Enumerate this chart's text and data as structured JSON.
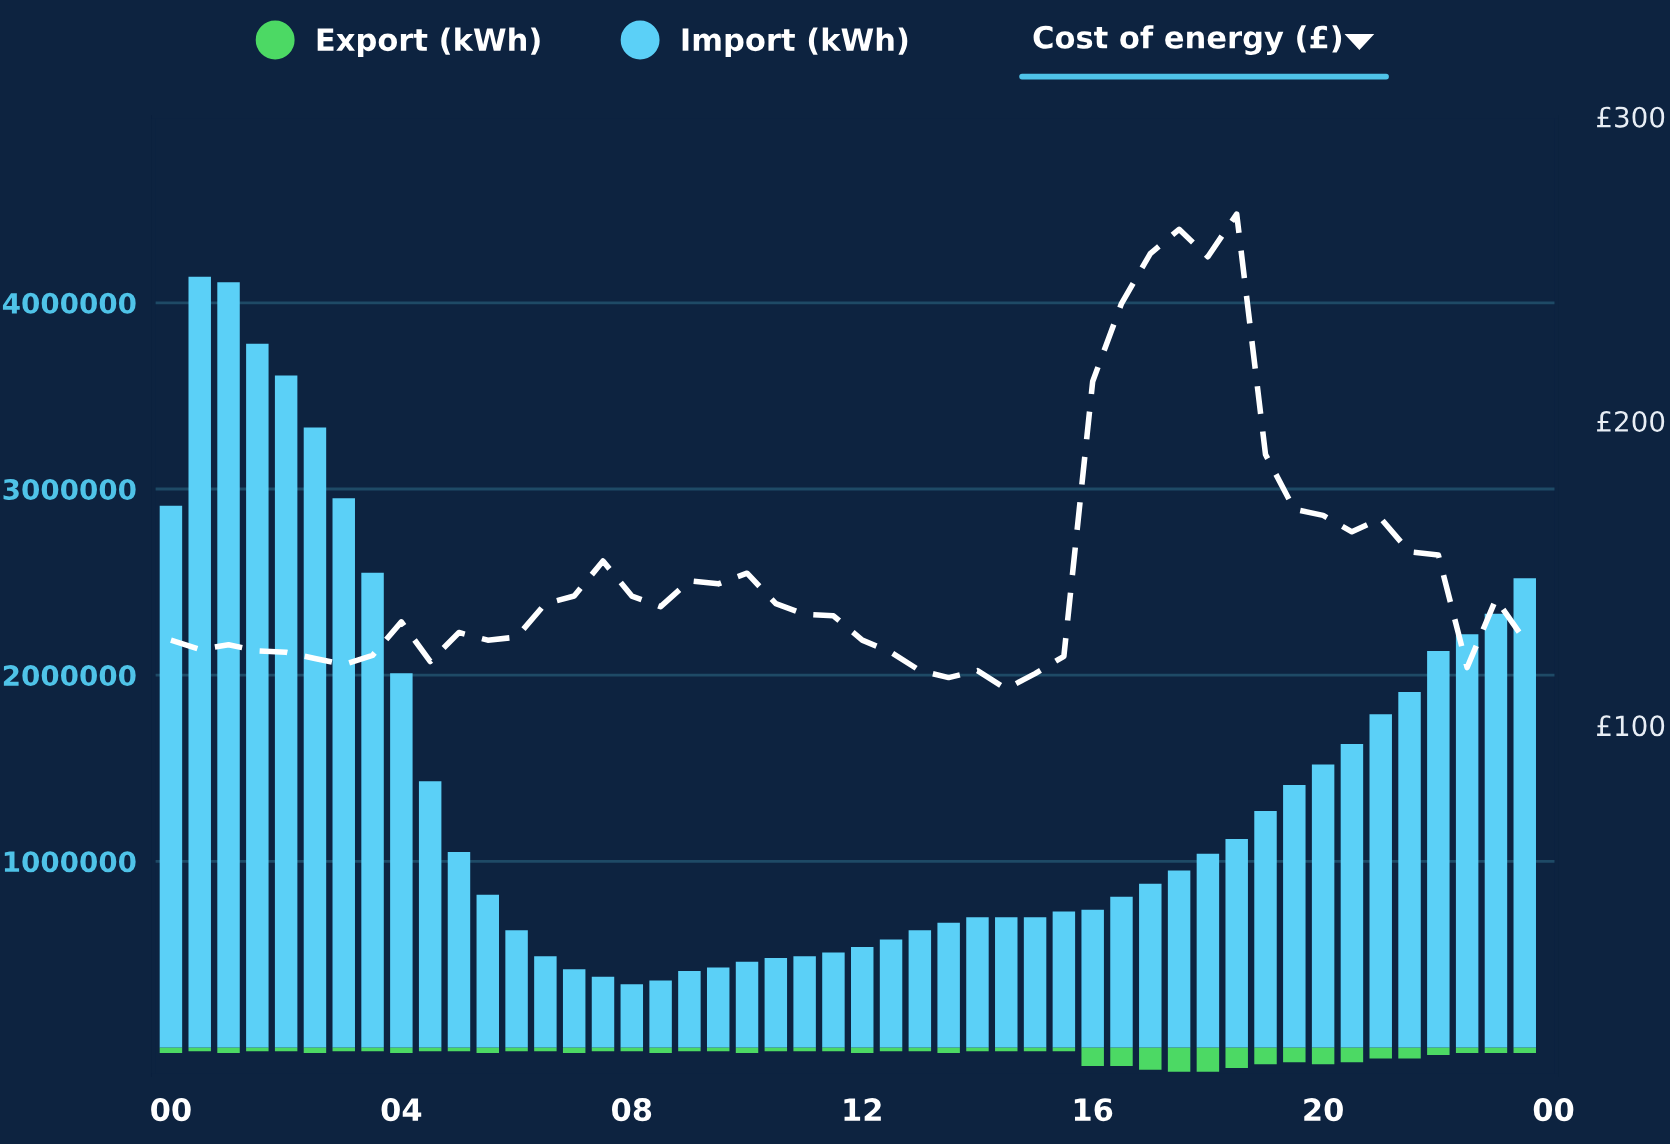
{
  "chart_data": {
    "type": "bar",
    "y2label": "Cost of energy (£)",
    "x": [
      0,
      0.5,
      1,
      1.5,
      2,
      2.5,
      3,
      3.5,
      4,
      4.5,
      5,
      5.5,
      6,
      6.5,
      7,
      7.5,
      8,
      8.5,
      9,
      9.5,
      10,
      10.5,
      11,
      11.5,
      12,
      12.5,
      13,
      13.5,
      14,
      14.5,
      15,
      15.5,
      16,
      16.5,
      17,
      17.5,
      18,
      18.5,
      19,
      19.5,
      20,
      20.5,
      21,
      21.5,
      22,
      22.5,
      23,
      23.5
    ],
    "series": [
      {
        "name": "Export (kWh)",
        "color": "#4cd964",
        "values": [
          -30000,
          -20000,
          -30000,
          -20000,
          -20000,
          -30000,
          -20000,
          -20000,
          -30000,
          -20000,
          -20000,
          -30000,
          -20000,
          -20000,
          -30000,
          -20000,
          -20000,
          -30000,
          -20000,
          -20000,
          -30000,
          -20000,
          -20000,
          -20000,
          -30000,
          -20000,
          -20000,
          -30000,
          -20000,
          -20000,
          -20000,
          -20000,
          -100000,
          -100000,
          -120000,
          -130000,
          -130000,
          -110000,
          -90000,
          -80000,
          -90000,
          -80000,
          -60000,
          -60000,
          -40000,
          -30000,
          -30000,
          -30000
        ]
      },
      {
        "name": "Import (kWh)",
        "color": "#5bd0f7",
        "values": [
          2910000,
          4140000,
          4110000,
          3780000,
          3610000,
          3330000,
          2950000,
          2550000,
          2010000,
          1430000,
          1050000,
          820000,
          630000,
          490000,
          420000,
          380000,
          340000,
          360000,
          410000,
          430000,
          460000,
          480000,
          490000,
          510000,
          540000,
          580000,
          630000,
          670000,
          700000,
          700000,
          700000,
          730000,
          740000,
          810000,
          880000,
          950000,
          1040000,
          1120000,
          1270000,
          1410000,
          1520000,
          1630000,
          1790000,
          1910000,
          2130000,
          2220000,
          2330000,
          2520000
        ]
      },
      {
        "type": "line",
        "axis": "y2",
        "color": "#ffffff",
        "line_style": "dashed",
        "values": [
          128,
          125,
          126.5,
          124.5,
          124,
          122,
          120,
          123,
          134,
          121,
          130.5,
          128,
          129,
          140,
          142.5,
          154,
          142.5,
          139,
          147.5,
          146.5,
          150,
          140,
          136.5,
          136,
          128,
          124,
          118,
          115.7,
          118,
          112,
          117,
          122.7,
          213,
          238.6,
          255,
          263,
          254,
          268,
          189,
          171,
          169,
          163.6,
          168,
          157,
          156,
          119,
          141.5,
          128
        ]
      }
    ],
    "xlim": [
      -0.3,
      24.05
    ],
    "xticks": [
      {
        "value": 0,
        "label": "00"
      },
      {
        "value": 4,
        "label": "04"
      },
      {
        "value": 8,
        "label": "08"
      },
      {
        "value": 12,
        "label": "12"
      },
      {
        "value": 16,
        "label": "16"
      },
      {
        "value": 20,
        "label": "20"
      },
      {
        "value": 24,
        "label": "00"
      }
    ],
    "ylim": [
      -150000,
      5000000
    ],
    "yticks": [
      1000000,
      2000000,
      3000000,
      4000000
    ],
    "y2lim": [
      -15,
      300
    ],
    "y2ticks": [
      {
        "value": 100,
        "label": "£100"
      },
      {
        "value": 200,
        "label": "£200"
      },
      {
        "value": 300,
        "label": "£300"
      }
    ],
    "grid": "y",
    "legend": "top",
    "stacked": true
  }
}
